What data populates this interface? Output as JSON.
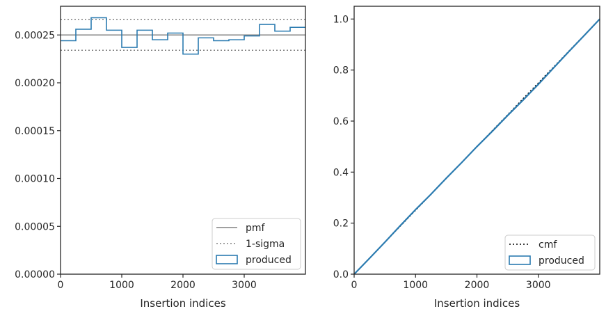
{
  "chart_data": [
    {
      "type": "histogram-step",
      "xlabel": "Insertion indices",
      "ylabel": "",
      "xlim": [
        0,
        4000
      ],
      "ylim": [
        0,
        0.00028
      ],
      "xticks": [
        0,
        1000,
        2000,
        3000
      ],
      "xtick_labels": [
        "0",
        "1000",
        "2000",
        "3000"
      ],
      "yticks": [
        0,
        5e-05,
        0.0001,
        0.00015,
        0.0002,
        0.00025
      ],
      "ytick_labels": [
        "0.00000",
        "0.00005",
        "0.00010",
        "0.00015",
        "0.00020",
        "0.00025"
      ],
      "grid": false,
      "legend_position": "lower-right",
      "series": [
        {
          "name": "pmf",
          "kind": "hline",
          "y": 0.00025,
          "color": "#808080",
          "style": "solid"
        },
        {
          "name": "1-sigma",
          "kind": "hlines",
          "y": [
            0.000234,
            0.000266
          ],
          "color": "#808080",
          "style": "dotted"
        },
        {
          "name": "produced",
          "kind": "step",
          "color": "#2b7bb0",
          "bin_edges": [
            0,
            250,
            500,
            750,
            1000,
            1250,
            1500,
            1750,
            2000,
            2250,
            2500,
            2750,
            3000,
            3250,
            3500,
            3750,
            4000
          ],
          "values": [
            0.000244,
            0.000256,
            0.000268,
            0.000255,
            0.000237,
            0.000255,
            0.000245,
            0.000252,
            0.00023,
            0.000247,
            0.000244,
            0.000245,
            0.000249,
            0.000261,
            0.000254,
            0.000258
          ]
        }
      ]
    },
    {
      "type": "line",
      "xlabel": "Insertion indices",
      "ylabel": "",
      "xlim": [
        0,
        4000
      ],
      "ylim": [
        0,
        1.05
      ],
      "xticks": [
        0,
        1000,
        2000,
        3000
      ],
      "xtick_labels": [
        "0",
        "1000",
        "2000",
        "3000"
      ],
      "yticks": [
        0,
        0.2,
        0.4,
        0.6,
        0.8,
        1.0
      ],
      "ytick_labels": [
        "0.0",
        "0.2",
        "0.4",
        "0.6",
        "0.8",
        "1.0"
      ],
      "grid": false,
      "legend_position": "lower-right",
      "series": [
        {
          "name": "cmf",
          "kind": "line",
          "color": "#000000",
          "style": "dotted",
          "x": [
            0,
            4000
          ],
          "y": [
            0,
            1
          ]
        },
        {
          "name": "produced",
          "kind": "step",
          "color": "#2b7bb0",
          "x": [
            0,
            250,
            500,
            750,
            1000,
            1250,
            1500,
            1750,
            2000,
            2250,
            2500,
            2750,
            3000,
            3250,
            3500,
            3750,
            4000
          ],
          "y": [
            0,
            0.062,
            0.125,
            0.19,
            0.253,
            0.313,
            0.376,
            0.437,
            0.5,
            0.56,
            0.622,
            0.682,
            0.744,
            0.809,
            0.873,
            0.936,
            1.0
          ]
        }
      ]
    }
  ]
}
